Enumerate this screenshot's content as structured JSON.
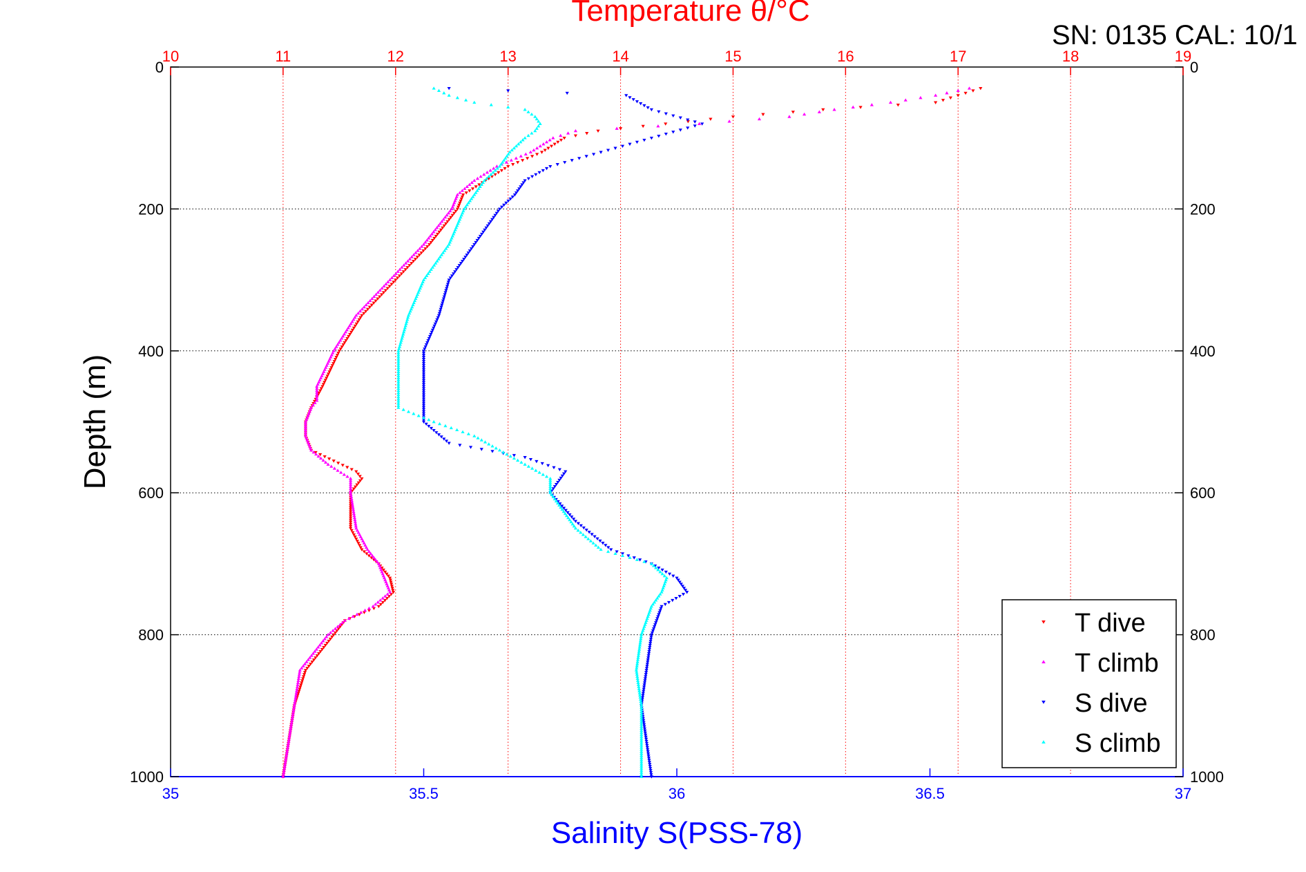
{
  "colors": {
    "temperature_axis": "#ff0000",
    "salinity_axis": "#0000ff",
    "depth_axis": "#000000",
    "t_dive": "#ff0000",
    "t_climb": "#ff00ff",
    "s_dive": "#0000ff",
    "s_climb": "#00ffff"
  },
  "header": {
    "serial_cal": "SN: 0135  CAL: 10/1"
  },
  "chart_data": {
    "type": "scatter",
    "title": "Temperature θ/°C",
    "xlabel": "Salinity S(PSS-78)",
    "ylabel": "Depth (m)",
    "temperature_axis": {
      "position": "top",
      "range": [
        10,
        19
      ],
      "ticks": [
        "10",
        "11",
        "12",
        "13",
        "14",
        "15",
        "16",
        "17",
        "18",
        "19"
      ]
    },
    "salinity_axis": {
      "position": "bottom",
      "range": [
        35,
        37
      ],
      "ticks": [
        "35",
        "35.5",
        "36",
        "36.5",
        "37"
      ]
    },
    "depth_axis": {
      "range": [
        0,
        1000
      ],
      "reversed": true,
      "ticks": [
        "0",
        "200",
        "400",
        "600",
        "800",
        "1000"
      ]
    },
    "grid": true,
    "legend": {
      "placement": "bottom-right",
      "entries": [
        "T dive",
        "T climb",
        "S dive",
        "S climb"
      ]
    },
    "series": [
      {
        "name": "T dive",
        "axis": "temperature",
        "marker": "triangle-down",
        "depth": [
          30,
          40,
          50,
          60,
          70,
          80,
          90,
          100,
          120,
          140,
          160,
          180,
          200,
          250,
          300,
          350,
          400,
          450,
          480,
          500,
          520,
          540,
          555,
          570,
          580,
          600,
          650,
          680,
          700,
          720,
          740,
          760,
          780,
          800,
          850,
          900,
          950,
          1000
        ],
        "values": [
          17.2,
          17.0,
          16.8,
          15.8,
          15.0,
          14.4,
          13.8,
          13.5,
          13.3,
          13.0,
          12.8,
          12.6,
          12.55,
          12.3,
          12.0,
          11.7,
          11.5,
          11.35,
          11.25,
          11.2,
          11.2,
          11.25,
          11.45,
          11.65,
          11.7,
          11.6,
          11.6,
          11.7,
          11.85,
          11.95,
          11.98,
          11.85,
          11.55,
          11.45,
          11.2,
          11.1,
          11.05,
          11.0
        ]
      },
      {
        "name": "T climb",
        "axis": "temperature",
        "marker": "triangle-up",
        "depth": [
          30,
          40,
          50,
          60,
          70,
          80,
          90,
          100,
          120,
          140,
          160,
          180,
          200,
          250,
          300,
          350,
          400,
          450,
          470,
          480,
          500,
          520,
          540,
          560,
          580,
          600,
          650,
          680,
          700,
          720,
          740,
          760,
          780,
          800,
          850,
          900,
          950,
          1000
        ],
        "values": [
          17.1,
          16.8,
          16.4,
          15.9,
          15.5,
          14.7,
          13.6,
          13.4,
          13.2,
          12.9,
          12.7,
          12.55,
          12.5,
          12.25,
          11.95,
          11.65,
          11.45,
          11.3,
          11.3,
          11.25,
          11.2,
          11.2,
          11.25,
          11.4,
          11.6,
          11.6,
          11.65,
          11.75,
          11.85,
          11.9,
          11.95,
          11.8,
          11.55,
          11.4,
          11.15,
          11.1,
          11.05,
          11.0
        ]
      },
      {
        "name": "S dive",
        "axis": "salinity",
        "marker": "triangle-down",
        "depth": [
          30,
          40,
          60,
          80,
          100,
          120,
          140,
          160,
          180,
          200,
          250,
          300,
          350,
          400,
          450,
          500,
          530,
          550,
          570,
          600,
          640,
          680,
          700,
          720,
          740,
          760,
          780,
          800,
          850,
          900,
          950,
          1000
        ],
        "values": [
          35.55,
          35.9,
          35.95,
          36.05,
          35.95,
          35.85,
          35.75,
          35.7,
          35.68,
          35.65,
          35.6,
          35.55,
          35.53,
          35.5,
          35.5,
          35.5,
          35.55,
          35.7,
          35.78,
          35.75,
          35.8,
          35.87,
          35.95,
          36.0,
          36.02,
          35.97,
          35.96,
          35.95,
          35.94,
          35.93,
          35.94,
          35.95
        ]
      },
      {
        "name": "S climb",
        "axis": "salinity",
        "marker": "triangle-up",
        "depth": [
          30,
          40,
          50,
          60,
          70,
          80,
          90,
          100,
          120,
          140,
          160,
          180,
          200,
          250,
          300,
          350,
          400,
          450,
          480,
          500,
          520,
          540,
          560,
          580,
          600,
          650,
          680,
          700,
          720,
          740,
          760,
          780,
          800,
          850,
          900,
          950,
          1000
        ],
        "values": [
          35.52,
          35.55,
          35.6,
          35.7,
          35.72,
          35.73,
          35.72,
          35.7,
          35.67,
          35.65,
          35.62,
          35.6,
          35.58,
          35.55,
          35.5,
          35.47,
          35.45,
          35.45,
          35.45,
          35.52,
          35.6,
          35.65,
          35.7,
          35.75,
          35.75,
          35.8,
          35.85,
          35.95,
          35.98,
          35.97,
          35.95,
          35.94,
          35.93,
          35.92,
          35.93,
          35.93,
          35.93
        ]
      }
    ]
  }
}
